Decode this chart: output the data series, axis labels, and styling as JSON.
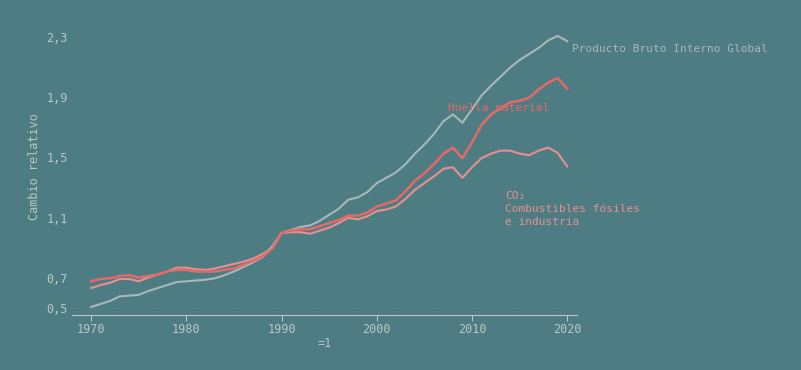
{
  "background_color": "#4d7d82",
  "plot_bg_color": "#4d7d82",
  "text_color": "#b8c8c8",
  "grid_color": "#5d9098",
  "line_color_gdp": "#a8b8b8",
  "line_color_material": "#e86868",
  "line_color_co2": "#e86868",
  "xlabel": "=1",
  "ylabel": "Cambio relativo",
  "label_gdp": "Producto Bruto Interno Global",
  "label_material": "Huella material",
  "label_co2": "CO₂\nCombustibles fósiles\ne industria",
  "yticks": [
    0.5,
    0.7,
    1.1,
    1.5,
    1.9,
    2.3
  ],
  "xticks": [
    1970,
    1980,
    1990,
    2000,
    2010,
    2020
  ],
  "ylim": [
    0.46,
    2.42
  ],
  "xlim": [
    1968,
    2021
  ],
  "years": [
    1970,
    1971,
    1972,
    1973,
    1974,
    1975,
    1976,
    1977,
    1978,
    1979,
    1980,
    1981,
    1982,
    1983,
    1984,
    1985,
    1986,
    1987,
    1988,
    1989,
    1990,
    1991,
    1992,
    1993,
    1994,
    1995,
    1996,
    1997,
    1998,
    1999,
    2000,
    2001,
    2002,
    2003,
    2004,
    2005,
    2006,
    2007,
    2008,
    2009,
    2010,
    2011,
    2012,
    2013,
    2014,
    2015,
    2016,
    2017,
    2018,
    2019,
    2020
  ],
  "gdp": [
    0.51,
    0.53,
    0.55,
    0.58,
    0.585,
    0.59,
    0.615,
    0.635,
    0.655,
    0.675,
    0.68,
    0.685,
    0.69,
    0.7,
    0.72,
    0.745,
    0.775,
    0.805,
    0.84,
    0.91,
    1.0,
    1.02,
    1.04,
    1.05,
    1.08,
    1.12,
    1.16,
    1.22,
    1.235,
    1.27,
    1.33,
    1.365,
    1.4,
    1.455,
    1.525,
    1.585,
    1.655,
    1.74,
    1.785,
    1.73,
    1.82,
    1.91,
    1.975,
    2.035,
    2.095,
    2.145,
    2.185,
    2.225,
    2.275,
    2.305,
    2.27
  ],
  "material": [
    0.68,
    0.695,
    0.7,
    0.715,
    0.72,
    0.705,
    0.715,
    0.725,
    0.745,
    0.755,
    0.755,
    0.745,
    0.745,
    0.745,
    0.755,
    0.765,
    0.79,
    0.815,
    0.845,
    0.895,
    1.0,
    1.015,
    1.025,
    1.025,
    1.045,
    1.065,
    1.085,
    1.115,
    1.115,
    1.135,
    1.175,
    1.195,
    1.215,
    1.275,
    1.345,
    1.395,
    1.455,
    1.525,
    1.565,
    1.495,
    1.6,
    1.715,
    1.785,
    1.825,
    1.865,
    1.875,
    1.895,
    1.95,
    1.995,
    2.025,
    1.955
  ],
  "co2": [
    0.635,
    0.655,
    0.67,
    0.695,
    0.695,
    0.68,
    0.705,
    0.725,
    0.745,
    0.77,
    0.77,
    0.76,
    0.755,
    0.765,
    0.78,
    0.795,
    0.81,
    0.83,
    0.86,
    0.9,
    1.0,
    1.005,
    1.005,
    0.995,
    1.015,
    1.035,
    1.065,
    1.1,
    1.09,
    1.11,
    1.145,
    1.155,
    1.175,
    1.225,
    1.285,
    1.33,
    1.375,
    1.425,
    1.435,
    1.365,
    1.435,
    1.495,
    1.525,
    1.545,
    1.545,
    1.525,
    1.515,
    1.545,
    1.565,
    1.53,
    1.44
  ]
}
